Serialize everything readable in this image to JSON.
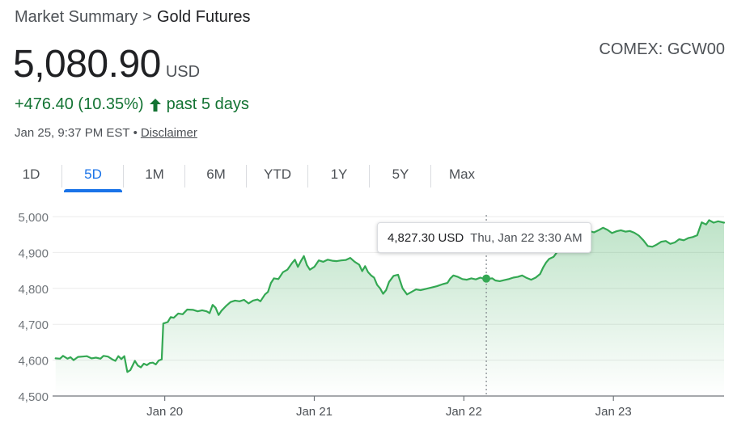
{
  "breadcrumb": {
    "root": "Market Summary",
    "separator": ">",
    "current": "Gold Futures"
  },
  "exchange": "COMEX: GCW00",
  "price": {
    "value": "5,080.90",
    "currency": "USD"
  },
  "change": {
    "text": "+476.40 (10.35%)",
    "arrow_icon": "up-arrow-icon",
    "period": "past 5 days",
    "color": "#137333"
  },
  "meta": {
    "timestamp": "Jan 25, 9:37 PM EST",
    "separator": "•",
    "disclaimer": "Disclaimer"
  },
  "tabs": [
    {
      "label": "1D",
      "active": false
    },
    {
      "label": "5D",
      "active": true
    },
    {
      "label": "1M",
      "active": false
    },
    {
      "label": "6M",
      "active": false
    },
    {
      "label": "YTD",
      "active": false
    },
    {
      "label": "1Y",
      "active": false
    },
    {
      "label": "5Y",
      "active": false
    },
    {
      "label": "Max",
      "active": false
    }
  ],
  "tooltip": {
    "value": "4,827.30 USD",
    "date": "Thu, Jan 22 3:30 AM"
  },
  "colors": {
    "line": "#34a853",
    "accent": "#1a73e8",
    "positive": "#137333"
  },
  "chart_data": {
    "type": "line",
    "title": "",
    "xlabel": "",
    "ylabel": "",
    "ylim": [
      4500,
      5000
    ],
    "yticks": [
      4500,
      4600,
      4700,
      4800,
      4900,
      5000
    ],
    "ytick_labels": [
      "4,500",
      "4,600",
      "4,700",
      "4,800",
      "4,900",
      "5,000"
    ],
    "xticks": [
      {
        "x": 1,
        "label": "Jan 20"
      },
      {
        "x": 2,
        "label": "Jan 21"
      },
      {
        "x": 3,
        "label": "Jan 22"
      },
      {
        "x": 4,
        "label": "Jan 23"
      }
    ],
    "xlim": [
      0.25,
      4.74
    ],
    "grid": true,
    "legend": "none",
    "hover_point": {
      "x": 3.15,
      "y": 4827.3
    },
    "series": [
      {
        "values": [
          [
            0.27,
            4605
          ],
          [
            0.3,
            4604
          ],
          [
            0.32,
            4612
          ],
          [
            0.35,
            4604
          ],
          [
            0.37,
            4608
          ],
          [
            0.39,
            4600
          ],
          [
            0.42,
            4609
          ],
          [
            0.45,
            4610
          ],
          [
            0.48,
            4611
          ],
          [
            0.51,
            4605
          ],
          [
            0.54,
            4607
          ],
          [
            0.57,
            4604
          ],
          [
            0.59,
            4612
          ],
          [
            0.62,
            4610
          ],
          [
            0.65,
            4602
          ],
          [
            0.67,
            4598
          ],
          [
            0.69,
            4611
          ],
          [
            0.71,
            4603
          ],
          [
            0.73,
            4611
          ],
          [
            0.75,
            4567
          ],
          [
            0.77,
            4572
          ],
          [
            0.8,
            4598
          ],
          [
            0.82,
            4585
          ],
          [
            0.84,
            4580
          ],
          [
            0.86,
            4590
          ],
          [
            0.88,
            4586
          ],
          [
            0.9,
            4592
          ],
          [
            0.92,
            4593
          ],
          [
            0.94,
            4588
          ],
          [
            0.96,
            4599
          ],
          [
            0.98,
            4602
          ],
          [
            0.99,
            4702
          ],
          [
            1.02,
            4706
          ],
          [
            1.04,
            4720
          ],
          [
            1.06,
            4718
          ],
          [
            1.09,
            4730
          ],
          [
            1.12,
            4728
          ],
          [
            1.15,
            4741
          ],
          [
            1.19,
            4740
          ],
          [
            1.22,
            4736
          ],
          [
            1.25,
            4739
          ],
          [
            1.28,
            4736
          ],
          [
            1.3,
            4731
          ],
          [
            1.32,
            4754
          ],
          [
            1.34,
            4746
          ],
          [
            1.36,
            4726
          ],
          [
            1.38,
            4738
          ],
          [
            1.41,
            4751
          ],
          [
            1.44,
            4762
          ],
          [
            1.47,
            4766
          ],
          [
            1.5,
            4764
          ],
          [
            1.53,
            4768
          ],
          [
            1.56,
            4758
          ],
          [
            1.59,
            4766
          ],
          [
            1.62,
            4769
          ],
          [
            1.64,
            4764
          ],
          [
            1.67,
            4783
          ],
          [
            1.69,
            4790
          ],
          [
            1.71,
            4815
          ],
          [
            1.73,
            4828
          ],
          [
            1.76,
            4826
          ],
          [
            1.79,
            4845
          ],
          [
            1.82,
            4852
          ],
          [
            1.85,
            4870
          ],
          [
            1.87,
            4880
          ],
          [
            1.89,
            4860
          ],
          [
            1.91,
            4876
          ],
          [
            1.93,
            4890
          ],
          [
            1.95,
            4865
          ],
          [
            1.97,
            4852
          ],
          [
            2.0,
            4860
          ],
          [
            2.03,
            4878
          ],
          [
            2.06,
            4874
          ],
          [
            2.09,
            4880
          ],
          [
            2.12,
            4877
          ],
          [
            2.15,
            4876
          ],
          [
            2.18,
            4878
          ],
          [
            2.21,
            4879
          ],
          [
            2.24,
            4885
          ],
          [
            2.27,
            4874
          ],
          [
            2.3,
            4866
          ],
          [
            2.32,
            4848
          ],
          [
            2.34,
            4862
          ],
          [
            2.36,
            4845
          ],
          [
            2.38,
            4836
          ],
          [
            2.4,
            4830
          ],
          [
            2.42,
            4810
          ],
          [
            2.44,
            4800
          ],
          [
            2.46,
            4785
          ],
          [
            2.48,
            4795
          ],
          [
            2.5,
            4818
          ],
          [
            2.53,
            4835
          ],
          [
            2.56,
            4838
          ],
          [
            2.59,
            4800
          ],
          [
            2.62,
            4783
          ],
          [
            2.65,
            4790
          ],
          [
            2.68,
            4797
          ],
          [
            2.71,
            4795
          ],
          [
            2.74,
            4798
          ],
          [
            2.78,
            4802
          ],
          [
            2.82,
            4806
          ],
          [
            2.86,
            4812
          ],
          [
            2.89,
            4815
          ],
          [
            2.91,
            4828
          ],
          [
            2.93,
            4836
          ],
          [
            2.96,
            4832
          ],
          [
            2.99,
            4826
          ],
          [
            3.02,
            4824
          ],
          [
            3.05,
            4828
          ],
          [
            3.08,
            4825
          ],
          [
            3.11,
            4830
          ],
          [
            3.14,
            4826
          ],
          [
            3.17,
            4827
          ],
          [
            3.19,
            4828
          ],
          [
            3.21,
            4822
          ],
          [
            3.24,
            4820
          ],
          [
            3.27,
            4823
          ],
          [
            3.3,
            4826
          ],
          [
            3.33,
            4830
          ],
          [
            3.36,
            4832
          ],
          [
            3.39,
            4836
          ],
          [
            3.42,
            4829
          ],
          [
            3.45,
            4824
          ],
          [
            3.48,
            4830
          ],
          [
            3.51,
            4840
          ],
          [
            3.53,
            4858
          ],
          [
            3.55,
            4872
          ],
          [
            3.57,
            4882
          ],
          [
            3.6,
            4888
          ],
          [
            3.63,
            4905
          ],
          [
            3.66,
            4918
          ],
          [
            3.69,
            4926
          ],
          [
            3.72,
            4935
          ],
          [
            3.75,
            4944
          ],
          [
            3.78,
            4950
          ],
          [
            3.81,
            4954
          ],
          [
            3.84,
            4960
          ],
          [
            3.87,
            4956
          ],
          [
            3.9,
            4962
          ],
          [
            3.93,
            4969
          ],
          [
            3.96,
            4963
          ],
          [
            3.99,
            4954
          ],
          [
            4.02,
            4959
          ],
          [
            4.05,
            4962
          ],
          [
            4.08,
            4958
          ],
          [
            4.11,
            4960
          ],
          [
            4.14,
            4955
          ],
          [
            4.17,
            4947
          ],
          [
            4.2,
            4934
          ],
          [
            4.23,
            4918
          ],
          [
            4.26,
            4916
          ],
          [
            4.29,
            4922
          ],
          [
            4.32,
            4930
          ],
          [
            4.35,
            4932
          ],
          [
            4.38,
            4924
          ],
          [
            4.41,
            4928
          ],
          [
            4.44,
            4937
          ],
          [
            4.47,
            4934
          ],
          [
            4.5,
            4940
          ],
          [
            4.53,
            4943
          ],
          [
            4.56,
            4948
          ],
          [
            4.59,
            4984
          ],
          [
            4.62,
            4978
          ],
          [
            4.64,
            4990
          ],
          [
            4.67,
            4983
          ],
          [
            4.7,
            4987
          ],
          [
            4.74,
            4983
          ]
        ]
      }
    ]
  }
}
